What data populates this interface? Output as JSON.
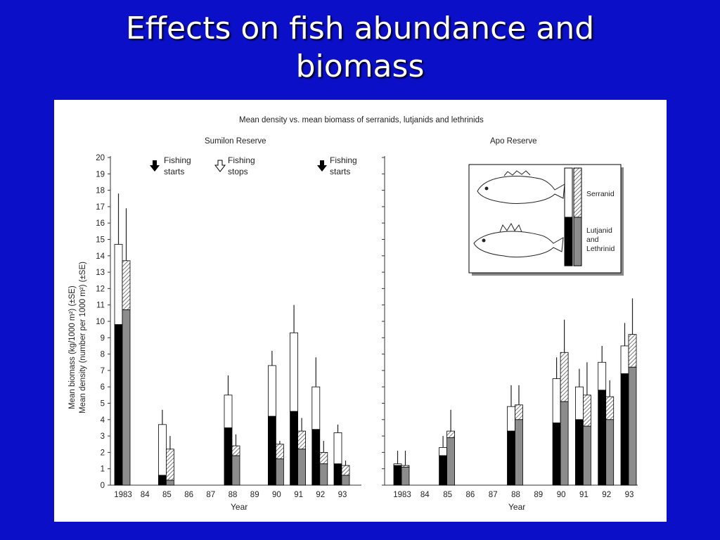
{
  "slide": {
    "title_line1": "Effects on fish abundance and",
    "title_line2": "biomass"
  },
  "figure": {
    "main_title": "Mean density vs. mean biomass of serranids, lutjanids and lethrinids",
    "ylabel_line1": "Mean biomass (kg/1000 m²) (±SE)",
    "ylabel_line2": "Mean density (number per 1000 m²) (±SE)",
    "legend": {
      "serranid": "Serranid",
      "lutjanid_line1": "Lutjanid",
      "lutjanid_line2": "and",
      "lutjanid_line3": "Lethrinid"
    },
    "annotations": [
      {
        "line1": "Fishing",
        "line2": "starts",
        "arrow": "filled",
        "at_year": "84"
      },
      {
        "line1": "Fishing",
        "line2": "stops",
        "arrow": "hollow",
        "at_year": "87"
      },
      {
        "line1": "Fishing",
        "line2": "starts",
        "arrow": "filled",
        "at_year": "91"
      }
    ],
    "colors": {
      "lutjanid_density": "#000000",
      "lutjanid_biomass": "#8c8c8c",
      "serranid_density": "#ffffff",
      "serranid_biomass": "hatched"
    }
  },
  "chart_data": [
    {
      "type": "bar",
      "title": "Sumilon Reserve",
      "xlabel": "Year",
      "ylim": [
        0,
        20
      ],
      "yticks": [
        "0",
        "1",
        "2",
        "3",
        "4",
        "5",
        "6",
        "7",
        "8",
        "9",
        "10",
        "11",
        "12",
        "13",
        "14",
        "15",
        "16",
        "17",
        "18",
        "19",
        "20"
      ],
      "categories": [
        "1983",
        "84",
        "85",
        "86",
        "87",
        "88",
        "89",
        "90",
        "91",
        "92",
        "93"
      ],
      "series": [
        {
          "measure": "density",
          "lutjanid": [
            9.8,
            null,
            0.6,
            null,
            null,
            3.5,
            null,
            4.2,
            4.5,
            3.4,
            1.3
          ],
          "serranid": [
            4.9,
            null,
            3.1,
            null,
            null,
            2.0,
            null,
            3.1,
            4.8,
            2.6,
            1.9
          ],
          "se_top": [
            17.8,
            null,
            4.6,
            null,
            null,
            6.7,
            null,
            8.2,
            11.0,
            7.8,
            3.7
          ]
        },
        {
          "measure": "biomass",
          "lutjanid": [
            10.7,
            null,
            0.3,
            null,
            null,
            1.8,
            null,
            1.6,
            2.2,
            1.3,
            0.6
          ],
          "serranid": [
            3.0,
            null,
            1.9,
            null,
            null,
            0.6,
            null,
            0.9,
            1.1,
            0.7,
            0.6
          ],
          "se_top": [
            16.9,
            null,
            3.0,
            null,
            null,
            3.1,
            null,
            2.7,
            4.1,
            2.7,
            1.5
          ]
        }
      ]
    },
    {
      "type": "bar",
      "title": "Apo Reserve",
      "xlabel": "Year",
      "ylim": [
        0,
        20
      ],
      "categories": [
        "1983",
        "84",
        "85",
        "86",
        "87",
        "88",
        "89",
        "90",
        "91",
        "92",
        "93"
      ],
      "series": [
        {
          "measure": "density",
          "lutjanid": [
            1.2,
            null,
            1.8,
            null,
            null,
            3.3,
            null,
            3.8,
            4.0,
            5.8,
            6.8
          ],
          "serranid": [
            0.1,
            null,
            0.5,
            null,
            null,
            1.5,
            null,
            2.7,
            2.0,
            1.7,
            1.7
          ],
          "se_top": [
            2.1,
            null,
            3.0,
            null,
            null,
            6.1,
            null,
            7.8,
            7.1,
            8.5,
            9.9
          ]
        },
        {
          "measure": "biomass",
          "lutjanid": [
            1.1,
            null,
            2.9,
            null,
            null,
            4.0,
            null,
            5.1,
            3.6,
            4.0,
            7.2
          ],
          "serranid": [
            0.1,
            null,
            0.4,
            null,
            null,
            0.9,
            null,
            3.0,
            1.9,
            1.4,
            2.0
          ],
          "se_top": [
            2.1,
            null,
            4.6,
            null,
            null,
            6.1,
            null,
            10.1,
            7.5,
            6.4,
            11.4
          ]
        }
      ]
    }
  ]
}
